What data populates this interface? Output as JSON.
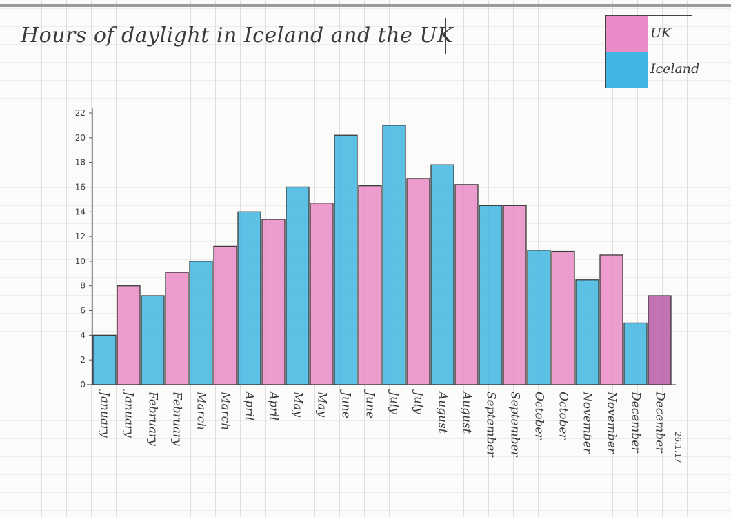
{
  "title": "Hours of daylight in Iceland and the UK",
  "legend": {
    "items": [
      {
        "label": "UK",
        "color": "#e98bc6"
      },
      {
        "label": "Iceland",
        "color": "#41b6e3"
      }
    ]
  },
  "corner_note": "26.1.17",
  "chart_data": {
    "type": "bar",
    "title": "Hours of daylight in Iceland and the UK",
    "categories": [
      "January",
      "January",
      "February",
      "February",
      "March",
      "March",
      "April",
      "April",
      "May",
      "May",
      "June",
      "June",
      "July",
      "July",
      "August",
      "August",
      "September",
      "September",
      "October",
      "October",
      "November",
      "November",
      "December",
      "December"
    ],
    "series": [
      {
        "name": "Iceland",
        "values": [
          4,
          null,
          7.2,
          null,
          10,
          null,
          14,
          null,
          16,
          null,
          20.2,
          null,
          21,
          null,
          17.8,
          null,
          14.5,
          null,
          10.9,
          null,
          8.5,
          null,
          5,
          null
        ]
      },
      {
        "name": "UK",
        "values": [
          null,
          8,
          null,
          9.1,
          null,
          11.2,
          null,
          13.4,
          null,
          14.7,
          null,
          16.1,
          null,
          16.7,
          null,
          16.2,
          null,
          14.5,
          null,
          10.8,
          null,
          10.5,
          null,
          7.2
        ]
      }
    ],
    "colors": {
      "Iceland": "#41b6e3",
      "UK": "#e98bc6",
      "December_UK": "#b85ba6"
    },
    "ylim": [
      0,
      22
    ],
    "yticks": [
      0,
      2,
      4,
      6,
      8,
      10,
      12,
      14,
      16,
      18,
      20,
      22
    ],
    "xlabel": "",
    "ylabel": "",
    "grid": true,
    "legend_position": "top-right"
  }
}
